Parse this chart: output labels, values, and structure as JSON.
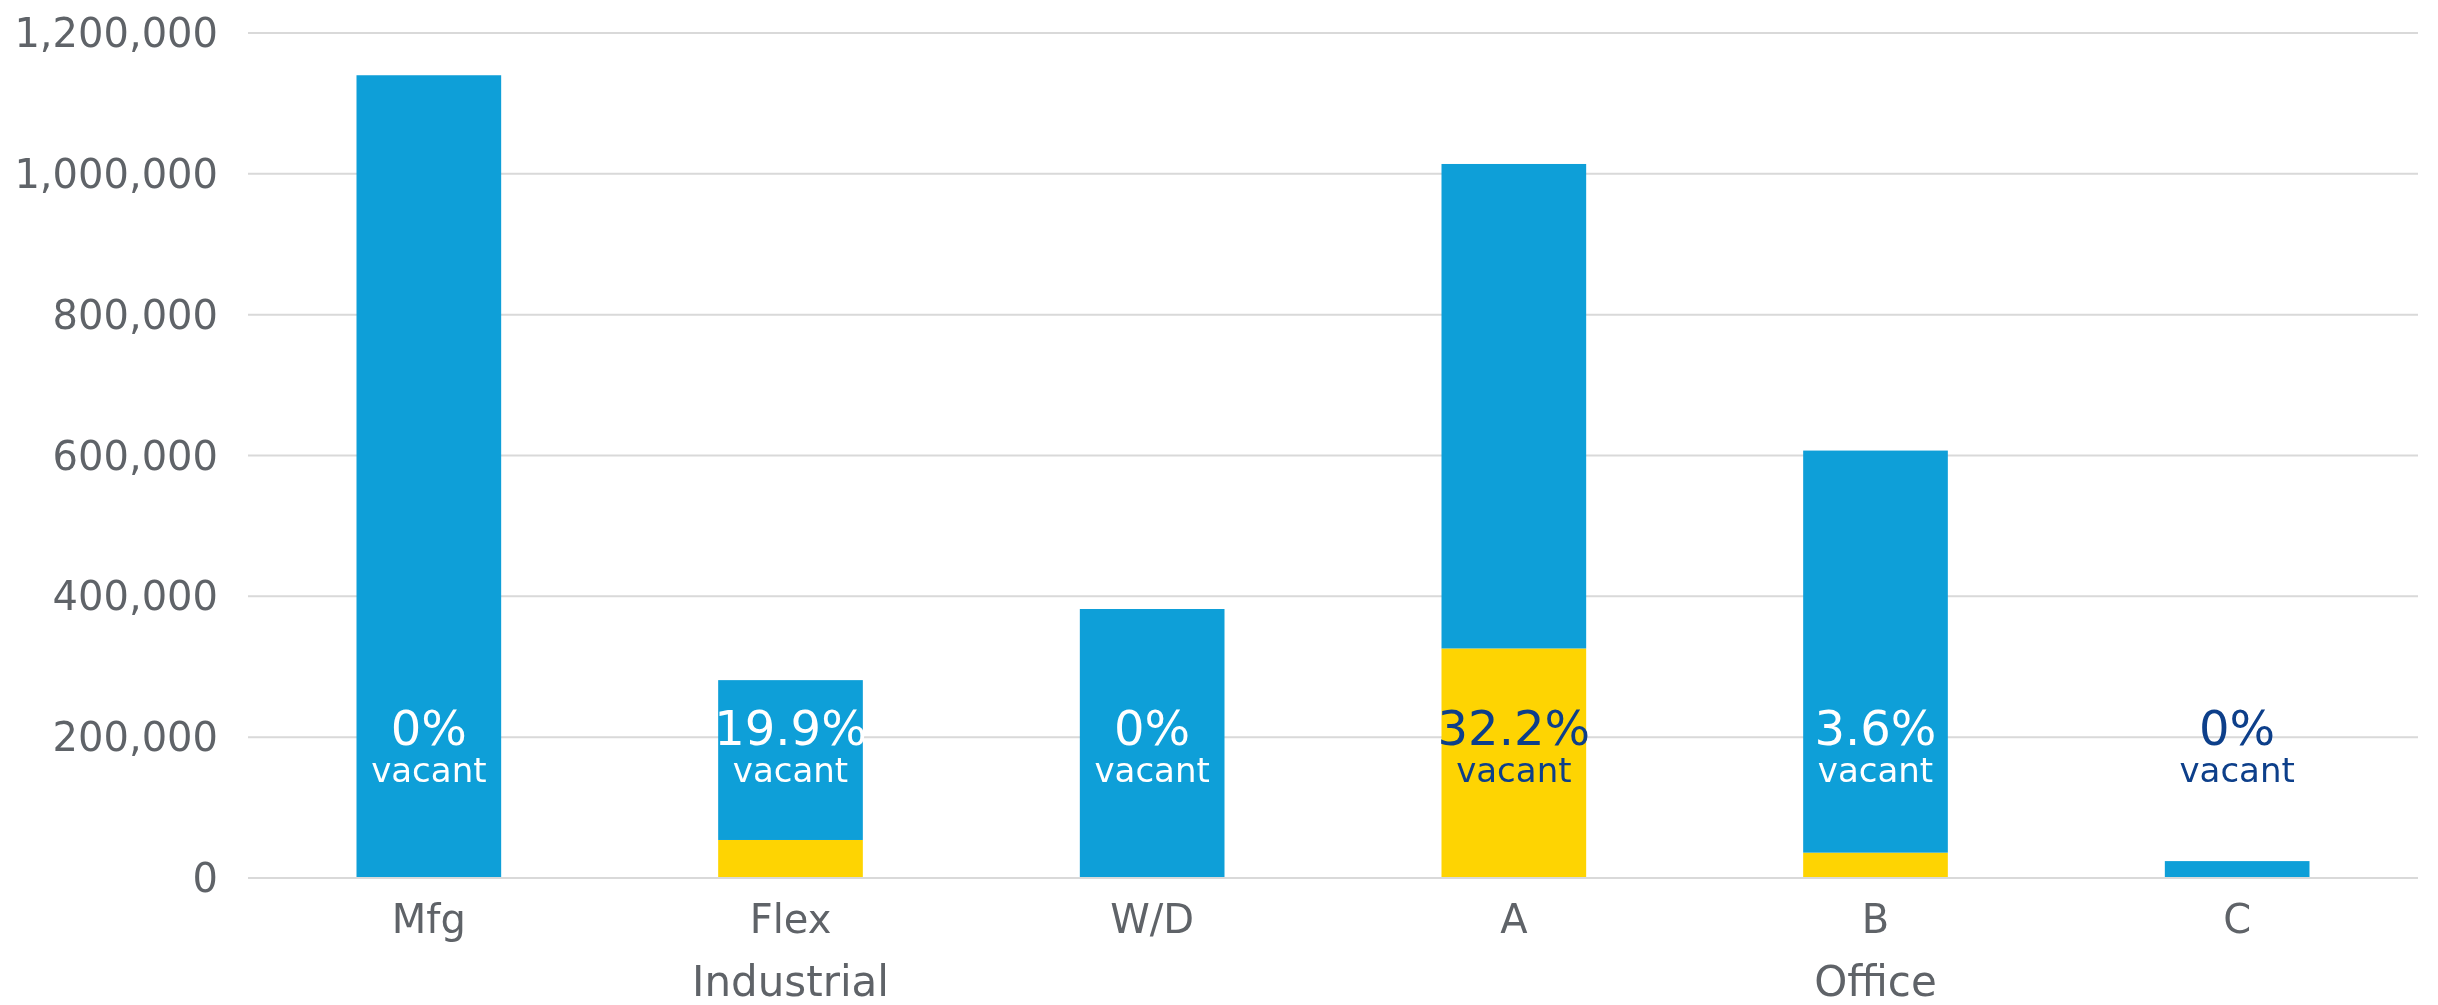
{
  "chart_data": {
    "type": "bar",
    "stacked": true,
    "categories": [
      "Mfg",
      "Flex",
      "W/D",
      "A",
      "B",
      "C"
    ],
    "series": [
      {
        "color": "#fed402",
        "values": [
          0,
          54000,
          0,
          326000,
          36000,
          0
        ]
      },
      {
        "color": "#0e9fd8",
        "values": [
          1140000,
          227000,
          382000,
          688000,
          571000,
          24000
        ]
      }
    ],
    "ylim": [
      0,
      1200000
    ],
    "yticks": [
      {
        "value": 0,
        "label": "0"
      },
      {
        "value": 200000,
        "label": "200,000"
      },
      {
        "value": 400000,
        "label": "400,000"
      },
      {
        "value": 600000,
        "label": "600,000"
      },
      {
        "value": 800000,
        "label": "800,000"
      },
      {
        "value": 1000000,
        "label": "1,000,000"
      },
      {
        "value": 1200000,
        "label": "1,200,000"
      }
    ],
    "grid": "y",
    "annotations": [
      "0%\nvacant",
      "19.9%\nvacant",
      "0%\nvacant",
      "32.2%\nvacant",
      "3.6%\nvacant",
      "0%\nvacant",
      "Industrial",
      "Office"
    ]
  }
}
